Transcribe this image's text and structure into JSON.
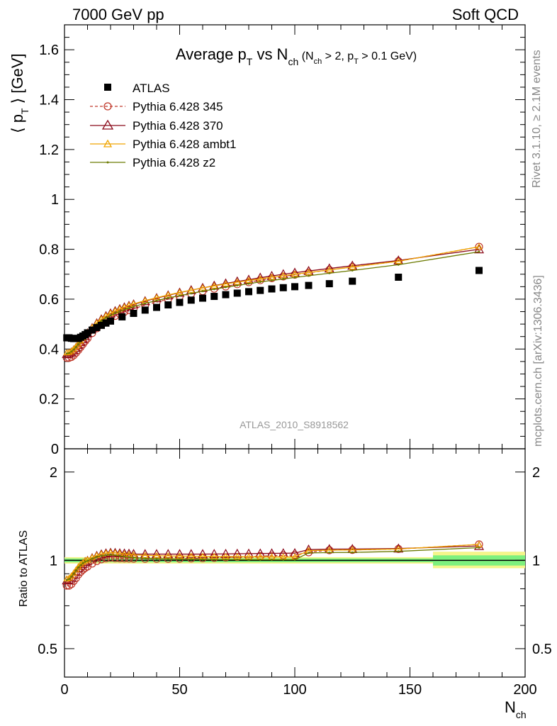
{
  "header": {
    "left": "7000 GeV pp",
    "right": "Soft QCD"
  },
  "side": {
    "rivet": "Rivet 3.1.10, ≥ 2.1M events",
    "mcplots": "mcplots.cern.ch [arXiv:1306.3436]"
  },
  "watermark": "ATLAS_2010_S8918562",
  "title": {
    "main_a": "Average p",
    "main_sub": "T",
    "main_b": " vs N",
    "main_sub2": "ch",
    "paren_a": " (N",
    "paren_sub": "ch",
    "paren_b": " > 2, p",
    "paren_sub2": "T",
    "paren_c": " > 0.1 GeV)"
  },
  "labels": {
    "ylabel_top": "⟨ p",
    "ylabel_top_sub": "T",
    "ylabel_top_end": " ⟩  [GeV]",
    "ylabel_bottom": "Ratio to ATLAS",
    "xlabel": "N",
    "xlabel_sub": "ch"
  },
  "legend": {
    "atlas": "ATLAS",
    "p345": "Pythia 6.428 345",
    "p370": "Pythia 6.428 370",
    "pambt1": "Pythia 6.428 ambt1",
    "pz2": "Pythia 6.428 z2"
  },
  "colors": {
    "atlas": "#000000",
    "p345": "#c0392b",
    "p370": "#8b0a1a",
    "pambt1": "#f0a500",
    "pz2": "#6b7a00",
    "band_inner": "#7ef07e",
    "band_outer": "#f5f58a"
  },
  "chart_data": [
    {
      "type": "scatter",
      "panel": "main",
      "xlim": [
        0,
        200
      ],
      "ylim": [
        0,
        1.7
      ],
      "ytick_labels": [
        "0",
        "0.2",
        "0.4",
        "0.6",
        "0.8",
        "1",
        "1.2",
        "1.4",
        "1.6"
      ],
      "xtick_labels": [
        "0",
        "50",
        "100",
        "150",
        "200"
      ],
      "series": [
        {
          "name": "ATLAS",
          "marker": "square",
          "x": [
            1,
            2,
            3,
            4,
            5,
            6,
            7,
            8,
            9,
            10,
            12,
            14,
            16,
            18,
            20,
            25,
            30,
            35,
            40,
            45,
            50,
            55,
            60,
            65,
            70,
            75,
            80,
            85,
            90,
            95,
            100,
            106,
            115,
            125,
            145,
            180
          ],
          "y": [
            0.445,
            0.445,
            0.443,
            0.442,
            0.442,
            0.443,
            0.447,
            0.452,
            0.458,
            0.465,
            0.476,
            0.486,
            0.495,
            0.504,
            0.512,
            0.529,
            0.543,
            0.556,
            0.567,
            0.577,
            0.587,
            0.596,
            0.604,
            0.611,
            0.618,
            0.624,
            0.63,
            0.635,
            0.641,
            0.646,
            0.65,
            0.655,
            0.662,
            0.672,
            0.688,
            0.715
          ]
        },
        {
          "name": "Pythia 6.428 345",
          "marker": "circle",
          "dashed": true,
          "x": [
            1,
            2,
            3,
            4,
            5,
            6,
            7,
            8,
            9,
            10,
            12,
            14,
            16,
            18,
            20,
            22,
            24,
            26,
            28,
            30,
            35,
            40,
            45,
            50,
            55,
            60,
            65,
            70,
            75,
            80,
            85,
            90,
            95,
            100,
            106,
            115,
            125,
            145,
            180
          ],
          "y": [
            0.365,
            0.365,
            0.368,
            0.375,
            0.385,
            0.396,
            0.408,
            0.42,
            0.432,
            0.443,
            0.464,
            0.483,
            0.499,
            0.512,
            0.523,
            0.533,
            0.541,
            0.549,
            0.556,
            0.562,
            0.576,
            0.588,
            0.6,
            0.611,
            0.622,
            0.632,
            0.642,
            0.651,
            0.66,
            0.668,
            0.676,
            0.684,
            0.691,
            0.698,
            0.706,
            0.717,
            0.729,
            0.752,
            0.81
          ]
        },
        {
          "name": "Pythia 6.428 370",
          "marker": "triangle",
          "x": [
            1,
            2,
            3,
            4,
            5,
            6,
            7,
            8,
            9,
            10,
            12,
            14,
            16,
            18,
            20,
            22,
            24,
            26,
            28,
            30,
            35,
            40,
            45,
            50,
            55,
            60,
            65,
            70,
            75,
            80,
            85,
            90,
            95,
            100,
            106,
            115,
            125,
            145,
            180
          ],
          "y": [
            0.38,
            0.382,
            0.387,
            0.395,
            0.405,
            0.416,
            0.428,
            0.44,
            0.452,
            0.463,
            0.484,
            0.503,
            0.519,
            0.532,
            0.543,
            0.552,
            0.56,
            0.567,
            0.573,
            0.579,
            0.592,
            0.604,
            0.615,
            0.626,
            0.636,
            0.645,
            0.654,
            0.663,
            0.671,
            0.678,
            0.686,
            0.693,
            0.7,
            0.706,
            0.713,
            0.723,
            0.734,
            0.755,
            0.8
          ]
        },
        {
          "name": "Pythia 6.428 ambt1",
          "marker": "triangle-small",
          "x": [
            1,
            2,
            3,
            4,
            5,
            6,
            7,
            8,
            9,
            10,
            12,
            14,
            16,
            18,
            20,
            22,
            24,
            26,
            28,
            30,
            35,
            40,
            45,
            50,
            55,
            60,
            65,
            70,
            75,
            80,
            85,
            90,
            95,
            100,
            106,
            115,
            125,
            145,
            180
          ],
          "y": [
            0.385,
            0.387,
            0.392,
            0.4,
            0.41,
            0.421,
            0.433,
            0.445,
            0.456,
            0.467,
            0.487,
            0.505,
            0.52,
            0.533,
            0.544,
            0.553,
            0.561,
            0.568,
            0.575,
            0.581,
            0.594,
            0.606,
            0.617,
            0.627,
            0.636,
            0.645,
            0.653,
            0.661,
            0.668,
            0.675,
            0.681,
            0.688,
            0.694,
            0.7,
            0.707,
            0.717,
            0.729,
            0.752,
            0.81
          ]
        },
        {
          "name": "Pythia 6.428 z2",
          "marker": "dot",
          "x": [
            1,
            2,
            3,
            4,
            5,
            6,
            7,
            8,
            9,
            10,
            12,
            14,
            16,
            18,
            20,
            22,
            24,
            26,
            28,
            30,
            35,
            40,
            45,
            50,
            55,
            60,
            65,
            70,
            75,
            80,
            85,
            90,
            95,
            100,
            106,
            115,
            125,
            145,
            180
          ],
          "y": [
            0.382,
            0.384,
            0.39,
            0.398,
            0.408,
            0.419,
            0.43,
            0.442,
            0.453,
            0.463,
            0.482,
            0.499,
            0.513,
            0.525,
            0.535,
            0.544,
            0.551,
            0.558,
            0.564,
            0.57,
            0.583,
            0.594,
            0.605,
            0.614,
            0.623,
            0.632,
            0.64,
            0.648,
            0.655,
            0.662,
            0.669,
            0.675,
            0.681,
            0.687,
            0.694,
            0.704,
            0.715,
            0.738,
            0.79
          ]
        }
      ]
    },
    {
      "type": "scatter",
      "panel": "ratio",
      "xlim": [
        0,
        200
      ],
      "ylim": [
        0.4,
        2.4
      ],
      "yscale": "log",
      "ytick_labels": [
        "0.5",
        "1",
        "2"
      ],
      "reference": 1,
      "band": {
        "x": [
          0,
          160,
          200
        ],
        "inner": [
          [
            0.985,
            1.015
          ],
          [
            0.96,
            1.04
          ]
        ],
        "outer": [
          [
            0.975,
            1.025
          ],
          [
            0.94,
            1.07
          ]
        ]
      },
      "series": [
        {
          "name": "Pythia 6.428 345",
          "marker": "circle",
          "dashed": true,
          "x": [
            1,
            2,
            3,
            4,
            5,
            6,
            7,
            8,
            9,
            10,
            12,
            14,
            16,
            18,
            20,
            22,
            24,
            26,
            28,
            30,
            35,
            40,
            45,
            50,
            55,
            60,
            65,
            70,
            75,
            80,
            85,
            90,
            95,
            100,
            106,
            115,
            125,
            145,
            180
          ],
          "y": [
            0.82,
            0.82,
            0.83,
            0.85,
            0.87,
            0.894,
            0.913,
            0.929,
            0.943,
            0.953,
            0.975,
            0.994,
            1.008,
            1.016,
            1.021,
            1.017,
            1.016,
            1.015,
            1.014,
            1.013,
            1.012,
            1.012,
            1.012,
            1.013,
            1.015,
            1.017,
            1.02,
            1.023,
            1.027,
            1.03,
            1.034,
            1.037,
            1.04,
            1.043,
            1.065,
            1.083,
            1.085,
            1.093,
            1.133
          ]
        },
        {
          "name": "Pythia 6.428 370",
          "marker": "triangle",
          "x": [
            1,
            2,
            3,
            4,
            5,
            6,
            7,
            8,
            9,
            10,
            12,
            14,
            16,
            18,
            20,
            22,
            24,
            26,
            28,
            30,
            35,
            40,
            45,
            50,
            55,
            60,
            65,
            70,
            75,
            80,
            85,
            90,
            95,
            100,
            106,
            115,
            125,
            145,
            180
          ],
          "y": [
            0.854,
            0.858,
            0.874,
            0.894,
            0.916,
            0.939,
            0.958,
            0.973,
            0.987,
            0.996,
            1.017,
            1.035,
            1.048,
            1.056,
            1.061,
            1.06,
            1.057,
            1.055,
            1.053,
            1.051,
            1.05,
            1.05,
            1.05,
            1.05,
            1.05,
            1.05,
            1.051,
            1.052,
            1.053,
            1.054,
            1.055,
            1.056,
            1.057,
            1.058,
            1.088,
            1.092,
            1.093,
            1.097,
            1.119
          ]
        },
        {
          "name": "Pythia 6.428 ambt1",
          "marker": "triangle-small",
          "x": [
            1,
            2,
            3,
            4,
            5,
            6,
            7,
            8,
            9,
            10,
            12,
            14,
            16,
            18,
            20,
            22,
            24,
            26,
            28,
            30,
            35,
            40,
            45,
            50,
            55,
            60,
            65,
            70,
            75,
            80,
            85,
            90,
            95,
            100,
            106,
            115,
            125,
            145,
            180
          ],
          "y": [
            0.865,
            0.87,
            0.885,
            0.905,
            0.928,
            0.95,
            0.969,
            0.984,
            0.996,
            1.004,
            1.023,
            1.039,
            1.051,
            1.058,
            1.063,
            1.06,
            1.055,
            1.051,
            1.047,
            1.044,
            1.04,
            1.037,
            1.035,
            1.034,
            1.033,
            1.032,
            1.031,
            1.031,
            1.03,
            1.029,
            1.028,
            1.028,
            1.027,
            1.027,
            1.079,
            1.083,
            1.085,
            1.093,
            1.133
          ]
        },
        {
          "name": "Pythia 6.428 z2",
          "marker": "dot",
          "x": [
            1,
            2,
            3,
            4,
            5,
            6,
            7,
            8,
            9,
            10,
            12,
            14,
            16,
            18,
            20,
            22,
            24,
            26,
            28,
            30,
            35,
            40,
            45,
            50,
            55,
            60,
            65,
            70,
            75,
            80,
            85,
            90,
            95,
            100,
            106,
            115,
            125,
            145,
            180
          ],
          "y": [
            0.858,
            0.863,
            0.88,
            0.9,
            0.923,
            0.946,
            0.963,
            0.978,
            0.989,
            0.996,
            1.013,
            1.027,
            1.036,
            1.042,
            1.045,
            1.04,
            1.035,
            1.03,
            1.025,
            1.022,
            1.016,
            1.013,
            1.011,
            1.009,
            1.008,
            1.007,
            1.006,
            1.006,
            1.006,
            1.005,
            1.005,
            1.005,
            1.005,
            1.005,
            1.06,
            1.063,
            1.064,
            1.073,
            1.105
          ]
        }
      ]
    }
  ]
}
